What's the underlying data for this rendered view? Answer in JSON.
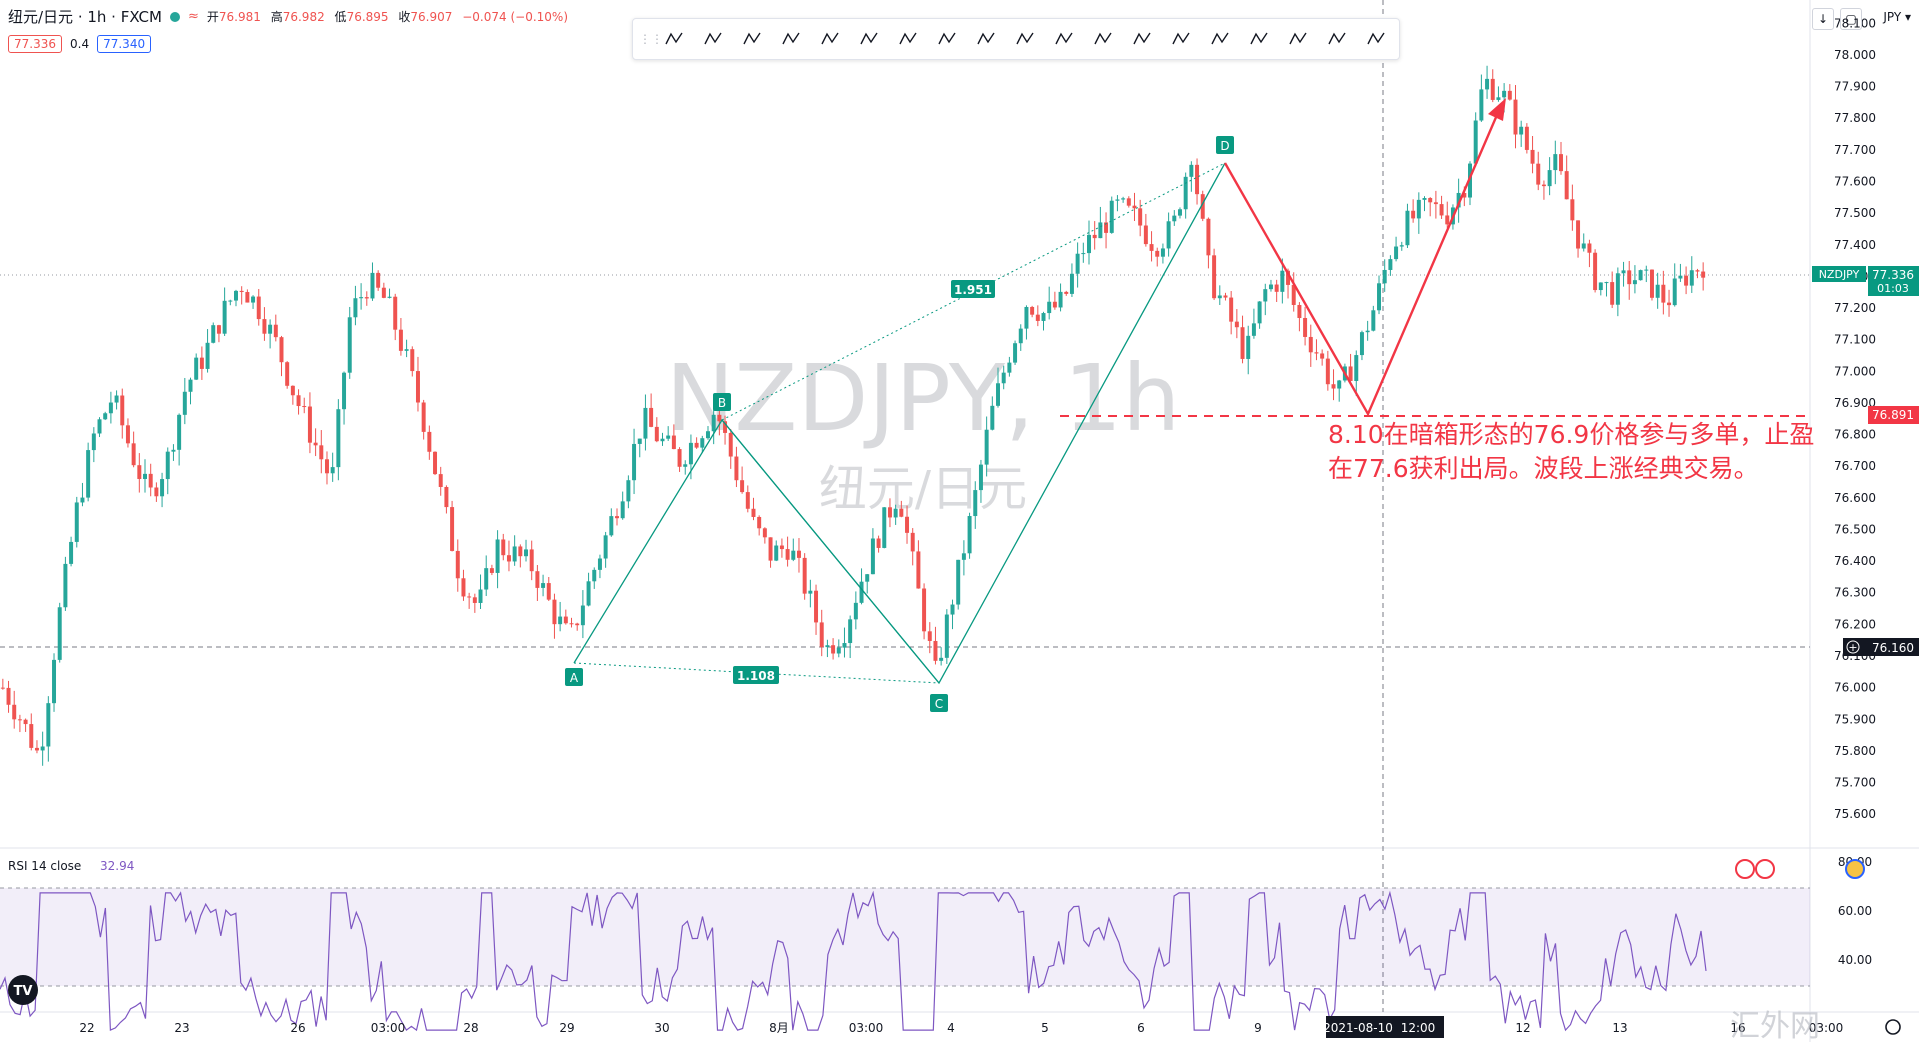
{
  "header": {
    "symbol": "纽元/日元 · 1h · FXCM",
    "ohlc_open_label": "开",
    "ohlc_open": "76.981",
    "ohlc_high_label": "高",
    "ohlc_high": "76.982",
    "ohlc_low_label": "低",
    "ohlc_low": "76.895",
    "ohlc_close_label": "收",
    "ohlc_close": "76.907",
    "change": "−0.074 (−0.10%)",
    "bid": "77.336",
    "spread": "0.4",
    "ask": "77.340"
  },
  "currency_label": "JPY ▾",
  "watermark": {
    "line1": "NZDJPY, 1h",
    "line2": "纽元/日元"
  },
  "annotation": {
    "line1": "8.10在暗箱形态的76.9价格参与多单，止盈",
    "line2": "在77.6获利出局。波段上涨经典交易。"
  },
  "pattern": {
    "A": "A",
    "B": "B",
    "C": "C",
    "D": "D",
    "ratio_bd": "1.951",
    "ratio_ac": "1.108"
  },
  "price_axis": {
    "ticks": [
      "78.100",
      "78.000",
      "77.900",
      "77.800",
      "77.700",
      "77.600",
      "77.500",
      "77.400",
      "77.300",
      "77.200",
      "77.100",
      "77.000",
      "76.900",
      "76.800",
      "76.700",
      "76.600",
      "76.500",
      "76.400",
      "76.300",
      "76.200",
      "76.100",
      "76.000",
      "75.900",
      "75.800",
      "75.700",
      "75.600"
    ],
    "symbol_tag": "NZDJPY",
    "last_price": "77.336",
    "countdown": "01:03",
    "entry_price": "76.891",
    "crosshair_price": "76.160"
  },
  "rsi": {
    "label": "RSI 14 close",
    "value": "32.94",
    "ticks": [
      "80.00",
      "60.00",
      "40.00"
    ]
  },
  "time_axis": {
    "labels": [
      "22",
      "23",
      "26",
      "03:00",
      "28",
      "29",
      "30",
      "8月",
      "03:00",
      "4",
      "5",
      "6",
      "9",
      "12",
      "13",
      "16",
      "03:00"
    ],
    "crosshair_date": "2021-08-10",
    "crosshair_time": "12:00"
  },
  "brand": "汇外网",
  "tools": [
    "xabcd-pattern-icon",
    "cypher-pattern-icon",
    "abcd-pattern-icon",
    "elliott-wave-icon",
    "rectangle-icon",
    "ellipse-icon",
    "fib-retracement-icon",
    "parallel-channel-icon",
    "trend-line-icon",
    "ray-icon",
    "horizontal-line-icon",
    "arrow-icon",
    "pitchfork-icon",
    "vertical-line-icon",
    "triangle-icon",
    "text-icon",
    "head-shoulders-icon",
    "callout-icon",
    "price-range-icon"
  ],
  "colors": {
    "up": "#26a69a",
    "down": "#ef5350",
    "pattern": "#089981",
    "rsi": "#7e57c2",
    "annotation": "#f23645"
  },
  "chart_data": {
    "type": "candlestick",
    "symbol": "NZDJPY",
    "timeframe": "1h",
    "ylim": [
      75.55,
      78.12
    ],
    "series": [
      {
        "name": "price_path",
        "values": [
          76.0,
          75.9,
          75.78,
          76.2,
          76.55,
          76.8,
          76.92,
          76.75,
          76.6,
          76.72,
          76.95,
          77.05,
          77.18,
          77.28,
          77.2,
          77.08,
          76.92,
          76.78,
          76.65,
          77.18,
          77.28,
          77.22,
          77.05,
          76.85,
          76.6,
          76.35,
          76.25,
          76.45,
          76.42,
          76.38,
          76.25,
          76.15,
          76.32,
          76.48,
          76.65,
          76.85,
          76.78,
          76.72,
          76.8,
          76.88,
          76.7,
          76.52,
          76.42,
          76.45,
          76.3,
          76.12,
          76.18,
          76.35,
          76.5,
          76.62,
          76.32,
          76.04,
          76.3,
          76.55,
          76.85,
          77.05,
          77.22,
          77.18,
          77.22,
          77.38,
          77.45,
          77.52,
          77.48,
          77.4,
          77.45,
          77.7,
          77.3,
          77.18,
          77.05,
          77.25,
          77.3,
          77.15,
          77.05,
          76.92,
          77.05,
          77.2,
          77.4,
          77.48,
          77.52,
          77.5,
          77.6,
          77.92,
          77.88,
          77.75,
          77.62,
          77.65,
          77.45,
          77.3,
          77.25,
          77.3,
          77.28,
          77.22,
          77.3,
          77.34
        ]
      }
    ]
  }
}
